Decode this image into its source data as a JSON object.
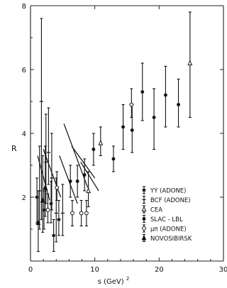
{
  "chart_data": {
    "type": "scatter",
    "title": "",
    "xlabel": "s (GeV)",
    "xlabel_sup": "2",
    "ylabel": "R",
    "xlim": [
      0,
      30
    ],
    "ylim": [
      0,
      8
    ],
    "x_ticks": [
      0,
      10,
      20,
      30
    ],
    "y_ticks": [
      2,
      4,
      6,
      8
    ],
    "x_tick_labels": [
      "0",
      "10",
      "20",
      "30"
    ],
    "y_tick_labels": [
      "2",
      "4",
      "6",
      "8"
    ],
    "grid": false,
    "legend_position": "lower-right",
    "series": [
      {
        "name": "YY (ADONE)",
        "marker": "asterisk",
        "points": [
          {
            "x": 1.0,
            "y": 2.0,
            "lo": 1.2,
            "hi": 2.6
          },
          {
            "x": 2.1,
            "y": 1.6,
            "lo": 1.0,
            "hi": 2.2
          },
          {
            "x": 3.2,
            "y": 1.8,
            "lo": 1.2,
            "hi": 2.5
          },
          {
            "x": 3.6,
            "y": 0.8,
            "lo": 0.3,
            "hi": 1.3
          },
          {
            "x": 4.4,
            "y": 1.3,
            "lo": 0.8,
            "hi": 1.9
          }
        ]
      },
      {
        "name": "BCF (ADONE)",
        "marker": "plus",
        "points": [
          {
            "x": 1.4,
            "y": 2.2,
            "lo": 1.0,
            "hi": 3.6
          },
          {
            "x": 1.7,
            "y": 5.0,
            "lo": 1.3,
            "hi": 7.6
          },
          {
            "x": 2.4,
            "y": 3.1,
            "lo": 1.8,
            "hi": 4.6
          },
          {
            "x": 2.8,
            "y": 3.4,
            "lo": 2.4,
            "hi": 4.8
          },
          {
            "x": 3.3,
            "y": 2.6,
            "lo": 1.6,
            "hi": 4.0
          },
          {
            "x": 4.0,
            "y": 1.5,
            "lo": 0.6,
            "hi": 2.6
          },
          {
            "x": 5.0,
            "y": 1.5,
            "lo": 0.8,
            "hi": 2.4
          }
        ]
      },
      {
        "name": "CEA",
        "marker": "open-triangle",
        "points": [
          {
            "x": 9.0,
            "y": 2.2,
            "lo": 1.7,
            "hi": 2.8
          },
          {
            "x": 10.9,
            "y": 3.7,
            "lo": 3.3,
            "hi": 4.2
          },
          {
            "x": 24.8,
            "y": 6.2,
            "lo": 4.5,
            "hi": 7.8
          }
        ]
      },
      {
        "name": "SLAC - LBL",
        "marker": "filled-circle",
        "points": [
          {
            "x": 6.2,
            "y": 2.5,
            "lo": 2.0,
            "hi": 3.0
          },
          {
            "x": 7.3,
            "y": 2.5,
            "lo": 2.0,
            "hi": 3.0
          },
          {
            "x": 8.4,
            "y": 2.7,
            "lo": 2.2,
            "hi": 3.2
          },
          {
            "x": 9.8,
            "y": 3.5,
            "lo": 3.0,
            "hi": 4.0
          },
          {
            "x": 12.9,
            "y": 3.2,
            "lo": 2.8,
            "hi": 3.6
          },
          {
            "x": 14.4,
            "y": 4.2,
            "lo": 3.5,
            "hi": 4.9
          },
          {
            "x": 15.8,
            "y": 4.1,
            "lo": 3.4,
            "hi": 4.9
          },
          {
            "x": 17.4,
            "y": 5.3,
            "lo": 4.4,
            "hi": 6.2
          },
          {
            "x": 19.2,
            "y": 4.5,
            "lo": 3.5,
            "hi": 5.4
          },
          {
            "x": 21.0,
            "y": 5.2,
            "lo": 4.2,
            "hi": 6.1
          },
          {
            "x": 23.0,
            "y": 4.9,
            "lo": 4.2,
            "hi": 5.7
          }
        ]
      },
      {
        "name": "μπ (ADONE)",
        "marker": "open-circle",
        "points": [
          {
            "x": 2.7,
            "y": 1.6,
            "lo": 1.2,
            "hi": 2.1
          },
          {
            "x": 4.1,
            "y": 2.3,
            "lo": 1.9,
            "hi": 2.8
          },
          {
            "x": 6.5,
            "y": 1.5,
            "lo": 1.1,
            "hi": 1.9
          },
          {
            "x": 7.9,
            "y": 1.5,
            "lo": 1.1,
            "hi": 1.9
          },
          {
            "x": 8.7,
            "y": 1.5,
            "lo": 1.1,
            "hi": 1.9
          },
          {
            "x": 15.7,
            "y": 4.9,
            "lo": 4.5,
            "hi": 5.4
          }
        ]
      },
      {
        "name": "NOVOSIBIRSK",
        "marker": "filled-triangle",
        "points": [
          {
            "x": 1.2,
            "y": 1.2,
            "lo": 0.3,
            "hi": 2.2
          },
          {
            "x": 1.9,
            "y": 1.9,
            "lo": 0.9,
            "hi": 3.3
          },
          {
            "x": 2.3,
            "y": 2.3,
            "lo": 1.4,
            "hi": 3.6
          }
        ]
      }
    ],
    "trend_lines": [
      {
        "x1": 1.1,
        "y1": 3.3,
        "x2": 3.0,
        "y2": 1.9
      },
      {
        "x1": 2.0,
        "y1": 3.5,
        "x2": 4.7,
        "y2": 2.0
      },
      {
        "x1": 4.5,
        "y1": 3.3,
        "x2": 7.3,
        "y2": 1.8
      },
      {
        "x1": 5.2,
        "y1": 4.3,
        "x2": 8.9,
        "y2": 2.3
      },
      {
        "x1": 6.4,
        "y1": 3.6,
        "x2": 10.0,
        "y2": 2.6
      },
      {
        "x1": 7.8,
        "y1": 3.1,
        "x2": 10.6,
        "y2": 2.2
      }
    ]
  }
}
